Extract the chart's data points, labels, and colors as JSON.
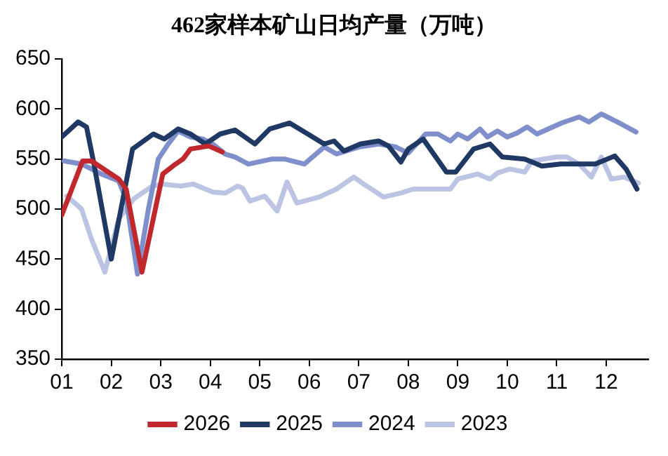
{
  "chart_data": {
    "type": "line",
    "title": "462家样本矿山日均产量（万吨）",
    "xlim": [
      1,
      12.85
    ],
    "xticks": [
      {
        "value": 1,
        "label": "01"
      },
      {
        "value": 2,
        "label": "02"
      },
      {
        "value": 3,
        "label": "03"
      },
      {
        "value": 4,
        "label": "04"
      },
      {
        "value": 5,
        "label": "05"
      },
      {
        "value": 6,
        "label": "06"
      },
      {
        "value": 7,
        "label": "07"
      },
      {
        "value": 8,
        "label": "08"
      },
      {
        "value": 9,
        "label": "09"
      },
      {
        "value": 10,
        "label": "10"
      },
      {
        "value": 11,
        "label": "11"
      },
      {
        "value": 12,
        "label": "12"
      }
    ],
    "ylim": [
      350,
      650
    ],
    "yticks": [
      350,
      400,
      450,
      500,
      550,
      600,
      650
    ],
    "legend": "bottom",
    "marker": "none",
    "line_style": "solid",
    "series": [
      {
        "name": "2026",
        "color": "#c0282d",
        "x": [
          1,
          1.42,
          1.6,
          2.15,
          2.3,
          2.62,
          3.04,
          3.3,
          3.45,
          3.6,
          3.97,
          4.24
        ],
        "values": [
          494,
          548,
          548,
          530,
          520,
          437,
          535,
          545,
          550,
          560,
          563,
          557
        ]
      },
      {
        "name": "2025",
        "color": "#1f3864",
        "x": [
          1,
          1.33,
          1.5,
          1.65,
          2.0,
          2.43,
          2.85,
          3.07,
          3.35,
          3.6,
          3.9,
          4.2,
          4.5,
          4.9,
          5.2,
          5.6,
          5.97,
          6.3,
          6.5,
          6.7,
          7.03,
          7.4,
          7.6,
          7.85,
          8.0,
          8.3,
          8.77,
          8.96,
          9.32,
          9.65,
          9.9,
          10.35,
          10.7,
          11.08,
          11.78,
          12.17,
          12.4,
          12.62
        ],
        "values": [
          572,
          587,
          582,
          545,
          450,
          560,
          575,
          570,
          580,
          575,
          565,
          575,
          579,
          565,
          580,
          586,
          575,
          565,
          568,
          558,
          565,
          568,
          563,
          547,
          560,
          570,
          537,
          537,
          560,
          565,
          552,
          550,
          543,
          545,
          545,
          553,
          540,
          520
        ]
      },
      {
        "name": "2024",
        "color": "#7f8fcc",
        "x": [
          1.05,
          1.4,
          1.6,
          1.8,
          2.15,
          2.3,
          2.53,
          2.75,
          2.95,
          3.15,
          3.35,
          3.6,
          3.85,
          4.05,
          4.3,
          4.5,
          4.77,
          5.25,
          5.5,
          5.9,
          6.3,
          6.55,
          7.0,
          7.4,
          7.75,
          8.0,
          8.35,
          8.6,
          8.85,
          9.0,
          9.2,
          9.45,
          9.6,
          9.8,
          10.0,
          10.2,
          10.4,
          10.6,
          11.1,
          11.45,
          11.65,
          11.9,
          12.3,
          12.6
        ],
        "values": [
          548,
          545,
          540,
          535,
          528,
          510,
          435,
          500,
          550,
          565,
          578,
          572,
          570,
          565,
          555,
          552,
          545,
          550,
          550,
          545,
          562,
          555,
          562,
          565,
          562,
          556,
          575,
          575,
          568,
          575,
          570,
          580,
          572,
          578,
          572,
          576,
          582,
          575,
          586,
          592,
          587,
          595,
          585,
          577
        ]
      },
      {
        "name": "2023",
        "color": "#bcc4e3",
        "x": [
          1.1,
          1.4,
          1.6,
          1.87,
          2.15,
          2.45,
          2.8,
          3.0,
          3.4,
          3.65,
          4.05,
          4.3,
          4.55,
          4.65,
          4.8,
          5.1,
          5.35,
          5.55,
          5.75,
          6.2,
          6.55,
          6.9,
          7.1,
          7.5,
          7.85,
          8.1,
          8.45,
          8.85,
          9.0,
          9.4,
          9.65,
          9.8,
          10.05,
          10.35,
          10.5,
          11.0,
          11.2,
          11.45,
          11.7,
          11.9,
          12.1,
          12.35,
          12.65
        ],
        "values": [
          513,
          500,
          470,
          437,
          490,
          510,
          522,
          525,
          523,
          525,
          517,
          516,
          523,
          521,
          508,
          513,
          498,
          527,
          506,
          512,
          520,
          532,
          525,
          512,
          516,
          520,
          520,
          520,
          530,
          535,
          530,
          536,
          540,
          537,
          548,
          552,
          552,
          545,
          532,
          552,
          530,
          532,
          526
        ]
      }
    ]
  }
}
